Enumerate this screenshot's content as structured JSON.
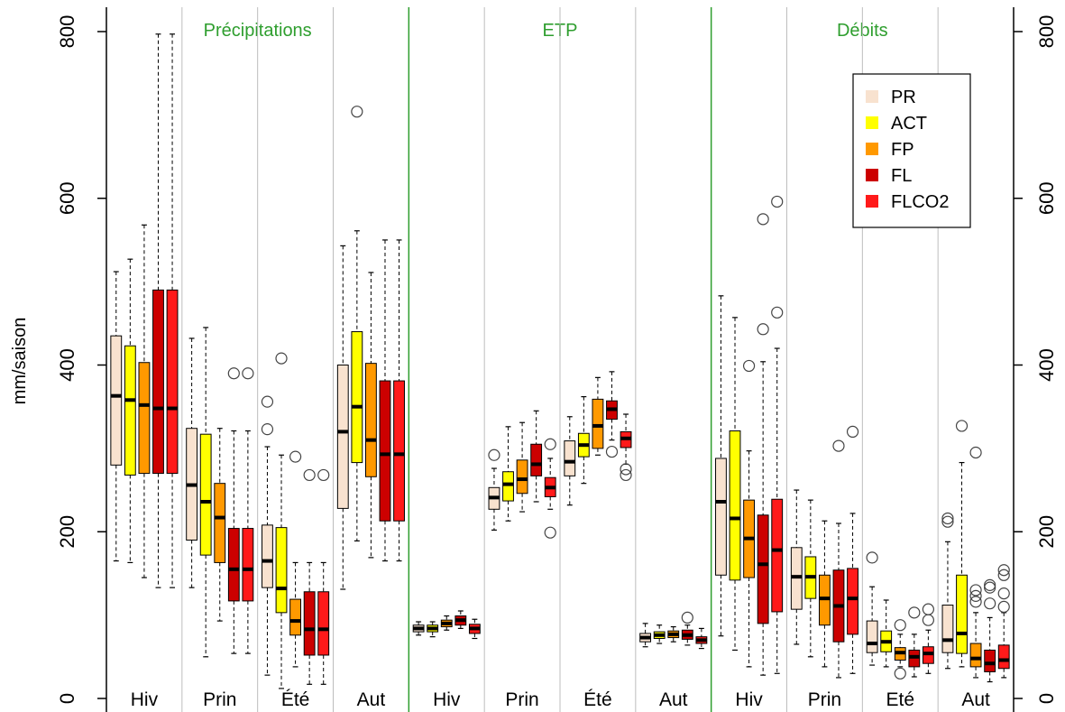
{
  "chart_data": {
    "type": "boxplot",
    "ylabel": "mm/saison",
    "ylim": [
      0,
      800
    ],
    "yticks": [
      0,
      200,
      400,
      600,
      800
    ],
    "grid": false,
    "legend_position": "top-right",
    "series": [
      {
        "name": "PR",
        "color": "#F8E2CF"
      },
      {
        "name": "ACT",
        "color": "#FFFF00"
      },
      {
        "name": "FP",
        "color": "#FF9900"
      },
      {
        "name": "FL",
        "color": "#CC0000"
      },
      {
        "name": "FLCO2",
        "color": "#FF1A1A"
      }
    ],
    "panels": [
      {
        "title": "Précipitations",
        "title_color": "#2E9E2E",
        "seasons": [
          {
            "label": "Hiv",
            "boxes": [
              {
                "series": "PR",
                "whisker_low": 165,
                "q1": 280,
                "median": 363,
                "q3": 435,
                "whisker_high": 512,
                "outliers": []
              },
              {
                "series": "ACT",
                "whisker_low": 163,
                "q1": 268,
                "median": 358,
                "q3": 423,
                "whisker_high": 527,
                "outliers": []
              },
              {
                "series": "FP",
                "whisker_low": 145,
                "q1": 270,
                "median": 352,
                "q3": 403,
                "whisker_high": 568,
                "outliers": []
              },
              {
                "series": "FL",
                "whisker_low": 133,
                "q1": 270,
                "median": 348,
                "q3": 490,
                "whisker_high": 797,
                "outliers": []
              },
              {
                "series": "FLCO2",
                "whisker_low": 133,
                "q1": 270,
                "median": 348,
                "q3": 490,
                "whisker_high": 797,
                "outliers": []
              }
            ]
          },
          {
            "label": "Prin",
            "boxes": [
              {
                "series": "PR",
                "whisker_low": 133,
                "q1": 190,
                "median": 256,
                "q3": 324,
                "whisker_high": 432,
                "outliers": []
              },
              {
                "series": "ACT",
                "whisker_low": 50,
                "q1": 172,
                "median": 236,
                "q3": 317,
                "whisker_high": 445,
                "outliers": []
              },
              {
                "series": "FP",
                "whisker_low": 93,
                "q1": 163,
                "median": 217,
                "q3": 258,
                "whisker_high": 324,
                "outliers": []
              },
              {
                "series": "FL",
                "whisker_low": 54,
                "q1": 117,
                "median": 155,
                "q3": 204,
                "whisker_high": 321,
                "outliers": [
                  390
                ]
              },
              {
                "series": "FLCO2",
                "whisker_low": 54,
                "q1": 117,
                "median": 155,
                "q3": 204,
                "whisker_high": 321,
                "outliers": [
                  390
                ]
              }
            ]
          },
          {
            "label": "Été",
            "boxes": [
              {
                "series": "PR",
                "whisker_low": 28,
                "q1": 133,
                "median": 165,
                "q3": 208,
                "whisker_high": 302,
                "outliers": [
                  323,
                  356
                ]
              },
              {
                "series": "ACT",
                "whisker_low": 12,
                "q1": 103,
                "median": 132,
                "q3": 205,
                "whisker_high": 292,
                "outliers": [
                  408
                ]
              },
              {
                "series": "FP",
                "whisker_low": 38,
                "q1": 76,
                "median": 93,
                "q3": 119,
                "whisker_high": 163,
                "outliers": [
                  290
                ]
              },
              {
                "series": "FL",
                "whisker_low": 17,
                "q1": 52,
                "median": 83,
                "q3": 128,
                "whisker_high": 163,
                "outliers": [
                  268
                ]
              },
              {
                "series": "FLCO2",
                "whisker_low": 17,
                "q1": 52,
                "median": 83,
                "q3": 128,
                "whisker_high": 163,
                "outliers": [
                  268
                ]
              }
            ]
          },
          {
            "label": "Aut",
            "boxes": [
              {
                "series": "PR",
                "whisker_low": 131,
                "q1": 228,
                "median": 320,
                "q3": 400,
                "whisker_high": 543,
                "outliers": []
              },
              {
                "series": "ACT",
                "whisker_low": 189,
                "q1": 283,
                "median": 350,
                "q3": 440,
                "whisker_high": 561,
                "outliers": [
                  704
                ]
              },
              {
                "series": "FP",
                "whisker_low": 169,
                "q1": 266,
                "median": 310,
                "q3": 402,
                "whisker_high": 511,
                "outliers": []
              },
              {
                "series": "FL",
                "whisker_low": 165,
                "q1": 213,
                "median": 293,
                "q3": 381,
                "whisker_high": 550,
                "outliers": []
              },
              {
                "series": "FLCO2",
                "whisker_low": 165,
                "q1": 213,
                "median": 293,
                "q3": 381,
                "whisker_high": 550,
                "outliers": []
              }
            ]
          }
        ]
      },
      {
        "title": "ETP",
        "title_color": "#2E9E2E",
        "seasons": [
          {
            "label": "Hiv",
            "boxes": [
              {
                "series": "PR",
                "whisker_low": 76,
                "q1": 80,
                "median": 84,
                "q3": 88,
                "whisker_high": 92,
                "outliers": []
              },
              {
                "series": "ACT",
                "whisker_low": 74,
                "q1": 80,
                "median": 84,
                "q3": 88,
                "whisker_high": 92,
                "outliers": []
              },
              {
                "series": "FP",
                "whisker_low": 82,
                "q1": 86,
                "median": 90,
                "q3": 94,
                "whisker_high": 99,
                "outliers": []
              },
              {
                "series": "FL",
                "whisker_low": 84,
                "q1": 88,
                "median": 94,
                "q3": 99,
                "whisker_high": 105,
                "outliers": []
              },
              {
                "series": "FLCO2",
                "whisker_low": 72,
                "q1": 78,
                "median": 84,
                "q3": 89,
                "whisker_high": 95,
                "outliers": []
              }
            ]
          },
          {
            "label": "Prin",
            "boxes": [
              {
                "series": "PR",
                "whisker_low": 202,
                "q1": 227,
                "median": 241,
                "q3": 253,
                "whisker_high": 276,
                "outliers": [
                  292
                ]
              },
              {
                "series": "ACT",
                "whisker_low": 213,
                "q1": 237,
                "median": 257,
                "q3": 272,
                "whisker_high": 326,
                "outliers": []
              },
              {
                "series": "FP",
                "whisker_low": 224,
                "q1": 246,
                "median": 263,
                "q3": 286,
                "whisker_high": 331,
                "outliers": []
              },
              {
                "series": "FL",
                "whisker_low": 236,
                "q1": 267,
                "median": 281,
                "q3": 305,
                "whisker_high": 345,
                "outliers": []
              },
              {
                "series": "FLCO2",
                "whisker_low": 227,
                "q1": 242,
                "median": 253,
                "q3": 265,
                "whisker_high": 288,
                "outliers": [
                  199,
                  305
                ]
              }
            ]
          },
          {
            "label": "Été",
            "boxes": [
              {
                "series": "PR",
                "whisker_low": 232,
                "q1": 267,
                "median": 284,
                "q3": 309,
                "whisker_high": 338,
                "outliers": []
              },
              {
                "series": "ACT",
                "whisker_low": 258,
                "q1": 290,
                "median": 304,
                "q3": 318,
                "whisker_high": 362,
                "outliers": []
              },
              {
                "series": "FP",
                "whisker_low": 292,
                "q1": 300,
                "median": 327,
                "q3": 359,
                "whisker_high": 385,
                "outliers": []
              },
              {
                "series": "FL",
                "whisker_low": 310,
                "q1": 335,
                "median": 347,
                "q3": 357,
                "whisker_high": 392,
                "outliers": [
                  296
                ]
              },
              {
                "series": "FLCO2",
                "whisker_low": 281,
                "q1": 301,
                "median": 312,
                "q3": 320,
                "whisker_high": 341,
                "outliers": [
                  268,
                  275
                ]
              }
            ]
          },
          {
            "label": "Aut",
            "boxes": [
              {
                "series": "PR",
                "whisker_low": 62,
                "q1": 68,
                "median": 73,
                "q3": 78,
                "whisker_high": 90,
                "outliers": []
              },
              {
                "series": "ACT",
                "whisker_low": 66,
                "q1": 72,
                "median": 76,
                "q3": 80,
                "whisker_high": 88,
                "outliers": []
              },
              {
                "series": "FP",
                "whisker_low": 68,
                "q1": 73,
                "median": 77,
                "q3": 81,
                "whisker_high": 86,
                "outliers": []
              },
              {
                "series": "FL",
                "whisker_low": 64,
                "q1": 71,
                "median": 76,
                "q3": 82,
                "whisker_high": 88,
                "outliers": [
                  97
                ]
              },
              {
                "series": "FLCO2",
                "whisker_low": 60,
                "q1": 66,
                "median": 70,
                "q3": 74,
                "whisker_high": 84,
                "outliers": []
              }
            ]
          }
        ]
      },
      {
        "title": "Débits",
        "title_color": "#2E9E2E",
        "seasons": [
          {
            "label": "Hiv",
            "boxes": [
              {
                "series": "PR",
                "whisker_low": 75,
                "q1": 148,
                "median": 236,
                "q3": 288,
                "whisker_high": 483,
                "outliers": []
              },
              {
                "series": "ACT",
                "whisker_low": 58,
                "q1": 142,
                "median": 216,
                "q3": 321,
                "whisker_high": 457,
                "outliers": []
              },
              {
                "series": "FP",
                "whisker_low": 38,
                "q1": 145,
                "median": 192,
                "q3": 238,
                "whisker_high": 297,
                "outliers": [
                  399
                ]
              },
              {
                "series": "FL",
                "whisker_low": 28,
                "q1": 90,
                "median": 161,
                "q3": 220,
                "whisker_high": 404,
                "outliers": [
                  443,
                  575
                ]
              },
              {
                "series": "FLCO2",
                "whisker_low": 30,
                "q1": 104,
                "median": 178,
                "q3": 239,
                "whisker_high": 420,
                "outliers": [
                  463,
                  596
                ]
              }
            ]
          },
          {
            "label": "Prin",
            "boxes": [
              {
                "series": "PR",
                "whisker_low": 65,
                "q1": 107,
                "median": 146,
                "q3": 181,
                "whisker_high": 250,
                "outliers": []
              },
              {
                "series": "ACT",
                "whisker_low": 50,
                "q1": 120,
                "median": 146,
                "q3": 170,
                "whisker_high": 238,
                "outliers": []
              },
              {
                "series": "FP",
                "whisker_low": 38,
                "q1": 88,
                "median": 120,
                "q3": 148,
                "whisker_high": 213,
                "outliers": []
              },
              {
                "series": "FL",
                "whisker_low": 25,
                "q1": 68,
                "median": 111,
                "q3": 154,
                "whisker_high": 210,
                "outliers": [
                  303
                ]
              },
              {
                "series": "FLCO2",
                "whisker_low": 30,
                "q1": 77,
                "median": 120,
                "q3": 156,
                "whisker_high": 222,
                "outliers": [
                  320
                ]
              }
            ]
          },
          {
            "label": "Eté",
            "boxes": [
              {
                "series": "PR",
                "whisker_low": 40,
                "q1": 55,
                "median": 66,
                "q3": 93,
                "whisker_high": 134,
                "outliers": [
                  169
                ]
              },
              {
                "series": "ACT",
                "whisker_low": 38,
                "q1": 56,
                "median": 68,
                "q3": 81,
                "whisker_high": 118,
                "outliers": []
              },
              {
                "series": "FP",
                "whisker_low": 38,
                "q1": 46,
                "median": 55,
                "q3": 61,
                "whisker_high": 77,
                "outliers": [
                  30,
                  88
                ]
              },
              {
                "series": "FL",
                "whisker_low": 26,
                "q1": 38,
                "median": 50,
                "q3": 58,
                "whisker_high": 77,
                "outliers": [
                  103
                ]
              },
              {
                "series": "FLCO2",
                "whisker_low": 30,
                "q1": 42,
                "median": 54,
                "q3": 62,
                "whisker_high": 82,
                "outliers": [
                  94,
                  107
                ]
              }
            ]
          },
          {
            "label": "Aut",
            "boxes": [
              {
                "series": "PR",
                "whisker_low": 36,
                "q1": 55,
                "median": 70,
                "q3": 112,
                "whisker_high": 188,
                "outliers": [
                  212,
                  216
                ]
              },
              {
                "series": "ACT",
                "whisker_low": 38,
                "q1": 54,
                "median": 78,
                "q3": 148,
                "whisker_high": 283,
                "outliers": [
                  327
                ]
              },
              {
                "series": "FP",
                "whisker_low": 25,
                "q1": 38,
                "median": 48,
                "q3": 66,
                "whisker_high": 103,
                "outliers": [
                  116,
                  123,
                  130,
                  295
                ]
              },
              {
                "series": "FL",
                "whisker_low": 20,
                "q1": 32,
                "median": 42,
                "q3": 58,
                "whisker_high": 97,
                "outliers": [
                  114,
                  133,
                  136
                ]
              },
              {
                "series": "FLCO2",
                "whisker_low": 25,
                "q1": 36,
                "median": 46,
                "q3": 64,
                "whisker_high": 103,
                "outliers": [
                  110,
                  126,
                  148,
                  154
                ]
              }
            ]
          }
        ]
      }
    ]
  }
}
